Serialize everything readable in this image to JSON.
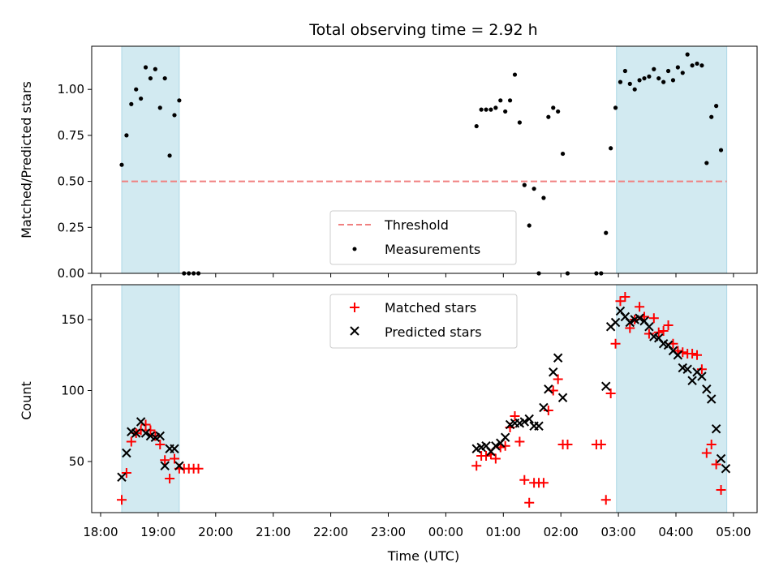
{
  "colors": {
    "shade": "#add8e6",
    "threshold": "#f08080",
    "matched": "#ff0000",
    "predicted": "#000000",
    "measurements": "#000000"
  },
  "chart_data": [
    {
      "type": "scatter",
      "title": "Total observing time = 2.92 h",
      "xlabel": "",
      "ylabel": "Matched/Predicted stars",
      "xlim": [
        "18:00",
        "05:20"
      ],
      "ylim": [
        0,
        1.25
      ],
      "yticks": [
        "0.00",
        "0.25",
        "0.50",
        "0.75",
        "1.00"
      ],
      "shaded_regions": [
        [
          "18:22",
          "19:22"
        ],
        [
          "02:58",
          "04:53"
        ]
      ],
      "threshold": {
        "name": "Threshold",
        "value": 0.5,
        "x": [
          "18:22",
          "04:53"
        ]
      },
      "legend": {
        "placement": "lower-center",
        "entries": [
          "Threshold",
          "Measurements"
        ]
      },
      "series": [
        {
          "name": "Measurements",
          "marker": "dot",
          "points": [
            [
              "18:22",
              0.59
            ],
            [
              "18:27",
              0.75
            ],
            [
              "18:32",
              0.92
            ],
            [
              "18:37",
              1.0
            ],
            [
              "18:42",
              0.95
            ],
            [
              "18:47",
              1.12
            ],
            [
              "18:52",
              1.06
            ],
            [
              "18:57",
              1.11
            ],
            [
              "19:02",
              0.9
            ],
            [
              "19:07",
              1.06
            ],
            [
              "19:12",
              0.64
            ],
            [
              "19:17",
              0.86
            ],
            [
              "19:22",
              0.94
            ],
            [
              "19:27",
              0.0
            ],
            [
              "19:32",
              0.0
            ],
            [
              "19:37",
              0.0
            ],
            [
              "19:42",
              0.0
            ],
            [
              "00:32",
              0.8
            ],
            [
              "00:37",
              0.89
            ],
            [
              "00:42",
              0.89
            ],
            [
              "00:47",
              0.89
            ],
            [
              "00:52",
              0.9
            ],
            [
              "00:57",
              0.94
            ],
            [
              "01:02",
              0.88
            ],
            [
              "01:07",
              0.94
            ],
            [
              "01:12",
              1.08
            ],
            [
              "01:17",
              0.82
            ],
            [
              "01:22",
              0.48
            ],
            [
              "01:27",
              0.26
            ],
            [
              "01:32",
              0.46
            ],
            [
              "01:37",
              0.0
            ],
            [
              "01:42",
              0.41
            ],
            [
              "01:47",
              0.85
            ],
            [
              "01:52",
              0.9
            ],
            [
              "01:57",
              0.88
            ],
            [
              "02:02",
              0.65
            ],
            [
              "02:07",
              0.0
            ],
            [
              "02:37",
              0.0
            ],
            [
              "02:42",
              0.0
            ],
            [
              "02:47",
              0.22
            ],
            [
              "02:52",
              0.68
            ],
            [
              "02:57",
              0.9
            ],
            [
              "03:02",
              1.04
            ],
            [
              "03:07",
              1.1
            ],
            [
              "03:12",
              1.03
            ],
            [
              "03:17",
              1.0
            ],
            [
              "03:22",
              1.05
            ],
            [
              "03:27",
              1.06
            ],
            [
              "03:32",
              1.07
            ],
            [
              "03:37",
              1.11
            ],
            [
              "03:42",
              1.06
            ],
            [
              "03:47",
              1.04
            ],
            [
              "03:52",
              1.1
            ],
            [
              "03:57",
              1.05
            ],
            [
              "04:02",
              1.12
            ],
            [
              "04:07",
              1.09
            ],
            [
              "04:12",
              1.19
            ],
            [
              "04:17",
              1.13
            ],
            [
              "04:22",
              1.14
            ],
            [
              "04:27",
              1.13
            ],
            [
              "04:32",
              0.6
            ],
            [
              "04:37",
              0.85
            ],
            [
              "04:42",
              0.91
            ],
            [
              "04:47",
              0.67
            ]
          ]
        }
      ]
    },
    {
      "type": "scatter",
      "title": "",
      "xlabel": "Time (UTC)",
      "ylabel": "Count",
      "xlim": [
        "18:00",
        "05:20"
      ],
      "ylim": [
        15,
        175
      ],
      "yticks": [
        "50",
        "100",
        "150"
      ],
      "xticks": [
        "18:00",
        "19:00",
        "20:00",
        "21:00",
        "22:00",
        "23:00",
        "00:00",
        "01:00",
        "02:00",
        "03:00",
        "04:00",
        "05:00"
      ],
      "shaded_regions": [
        [
          "18:22",
          "19:22"
        ],
        [
          "02:58",
          "04:53"
        ]
      ],
      "legend": {
        "placement": "upper-center",
        "entries": [
          "Matched stars",
          "Predicted stars"
        ]
      },
      "series": [
        {
          "name": "Matched stars",
          "marker": "plus",
          "points": [
            [
              "18:22",
              23
            ],
            [
              "18:27",
              42
            ],
            [
              "18:32",
              64
            ],
            [
              "18:37",
              70
            ],
            [
              "18:42",
              72
            ],
            [
              "18:47",
              76
            ],
            [
              "18:52",
              72
            ],
            [
              "18:57",
              68
            ],
            [
              "19:02",
              62
            ],
            [
              "19:07",
              51
            ],
            [
              "19:12",
              38
            ],
            [
              "19:17",
              52
            ],
            [
              "19:22",
              45
            ],
            [
              "19:27",
              45
            ],
            [
              "19:32",
              45
            ],
            [
              "19:37",
              45
            ],
            [
              "19:42",
              45
            ],
            [
              "00:32",
              47
            ],
            [
              "00:37",
              54
            ],
            [
              "00:42",
              54
            ],
            [
              "00:47",
              55
            ],
            [
              "00:52",
              52
            ],
            [
              "00:57",
              60
            ],
            [
              "01:02",
              61
            ],
            [
              "01:07",
              74
            ],
            [
              "01:12",
              82
            ],
            [
              "01:17",
              64
            ],
            [
              "01:22",
              37
            ],
            [
              "01:27",
              21
            ],
            [
              "01:32",
              35
            ],
            [
              "01:37",
              35
            ],
            [
              "01:42",
              35
            ],
            [
              "01:47",
              86
            ],
            [
              "01:52",
              100
            ],
            [
              "01:57",
              108
            ],
            [
              "02:02",
              62
            ],
            [
              "02:07",
              62
            ],
            [
              "02:37",
              62
            ],
            [
              "02:42",
              62
            ],
            [
              "02:47",
              23
            ],
            [
              "02:52",
              98
            ],
            [
              "02:57",
              133
            ],
            [
              "03:02",
              163
            ],
            [
              "03:07",
              166
            ],
            [
              "03:12",
              144
            ],
            [
              "03:17",
              150
            ],
            [
              "03:22",
              159
            ],
            [
              "03:27",
              152
            ],
            [
              "03:32",
              140
            ],
            [
              "03:37",
              151
            ],
            [
              "03:42",
              141
            ],
            [
              "03:47",
              142
            ],
            [
              "03:52",
              146
            ],
            [
              "03:57",
              133
            ],
            [
              "04:02",
              128
            ],
            [
              "04:07",
              127
            ],
            [
              "04:12",
              126
            ],
            [
              "04:17",
              126
            ],
            [
              "04:22",
              125
            ],
            [
              "04:27",
              115
            ],
            [
              "04:32",
              56
            ],
            [
              "04:37",
              62
            ],
            [
              "04:42",
              48
            ],
            [
              "04:47",
              30
            ]
          ]
        },
        {
          "name": "Predicted stars",
          "marker": "x",
          "points": [
            [
              "18:22",
              39
            ],
            [
              "18:27",
              56
            ],
            [
              "18:32",
              71
            ],
            [
              "18:37",
              70
            ],
            [
              "18:42",
              78
            ],
            [
              "18:47",
              70
            ],
            [
              "18:52",
              68
            ],
            [
              "18:57",
              67
            ],
            [
              "19:02",
              68
            ],
            [
              "19:07",
              47
            ],
            [
              "19:12",
              59
            ],
            [
              "19:17",
              59
            ],
            [
              "19:22",
              47
            ],
            [
              "00:32",
              59
            ],
            [
              "00:37",
              60
            ],
            [
              "00:42",
              61
            ],
            [
              "00:47",
              57
            ],
            [
              "00:52",
              61
            ],
            [
              "00:57",
              63
            ],
            [
              "01:02",
              67
            ],
            [
              "01:07",
              76
            ],
            [
              "01:12",
              77
            ],
            [
              "01:17",
              77
            ],
            [
              "01:22",
              78
            ],
            [
              "01:27",
              80
            ],
            [
              "01:32",
              75
            ],
            [
              "01:37",
              75
            ],
            [
              "01:42",
              88
            ],
            [
              "01:47",
              101
            ],
            [
              "01:52",
              113
            ],
            [
              "01:57",
              123
            ],
            [
              "02:02",
              95
            ],
            [
              "02:47",
              103
            ],
            [
              "02:52",
              145
            ],
            [
              "02:57",
              148
            ],
            [
              "03:02",
              156
            ],
            [
              "03:07",
              152
            ],
            [
              "03:12",
              148
            ],
            [
              "03:17",
              150
            ],
            [
              "03:22",
              151
            ],
            [
              "03:27",
              149
            ],
            [
              "03:32",
              145
            ],
            [
              "03:37",
              138
            ],
            [
              "03:42",
              137
            ],
            [
              "03:47",
              133
            ],
            [
              "03:52",
              132
            ],
            [
              "03:57",
              128
            ],
            [
              "04:02",
              125
            ],
            [
              "04:07",
              116
            ],
            [
              "04:12",
              115
            ],
            [
              "04:17",
              107
            ],
            [
              "04:22",
              113
            ],
            [
              "04:27",
              110
            ],
            [
              "04:32",
              101
            ],
            [
              "04:37",
              94
            ],
            [
              "04:42",
              73
            ],
            [
              "04:47",
              52
            ],
            [
              "04:52",
              45
            ]
          ]
        }
      ]
    }
  ]
}
